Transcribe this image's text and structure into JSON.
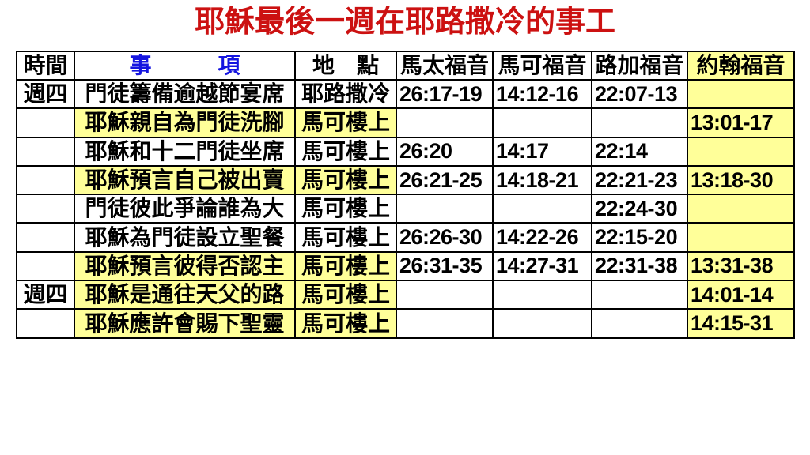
{
  "colors": {
    "background": "#FFFFFF",
    "title_red": "#CC1111",
    "header_blue": "#1515E0",
    "highlight_yellow": "#FFFF99",
    "border_black": "#000000",
    "text_black": "#000000"
  },
  "title": {
    "text": "耶穌最後一週在耶路撒冷的事工"
  },
  "table": {
    "header": {
      "time": "時間",
      "event": "事　　　項",
      "place": "地　點",
      "matthew": "馬太福音",
      "mark": "馬可福音",
      "luke": "路加福音",
      "john": "約翰福音"
    },
    "rows": [
      {
        "time": "週四",
        "event": "門徒籌備逾越節宴席",
        "place": "耶路撒冷",
        "matthew": "26:17-19",
        "mark": "14:12-16",
        "luke": "22:07-13",
        "john": "",
        "highlighted": false
      },
      {
        "time": "",
        "event": "耶穌親自為門徒洗腳",
        "place": "馬可樓上",
        "matthew": "",
        "mark": "",
        "luke": "",
        "john": "13:01-17",
        "highlighted": true
      },
      {
        "time": "",
        "event": "耶穌和十二門徒坐席",
        "place": "馬可樓上",
        "matthew": "26:20",
        "mark": "14:17",
        "luke": "22:14",
        "john": "",
        "highlighted": false
      },
      {
        "time": "",
        "event": "耶穌預言自己被出賣",
        "place": "馬可樓上",
        "matthew": "26:21-25",
        "mark": "14:18-21",
        "luke": "22:21-23",
        "john": "13:18-30",
        "highlighted": true
      },
      {
        "time": "",
        "event": "門徒彼此爭論誰為大",
        "place": "馬可樓上",
        "matthew": "",
        "mark": "",
        "luke": "22:24-30",
        "john": "",
        "highlighted": false
      },
      {
        "time": "",
        "event": "耶穌為門徒設立聖餐",
        "place": "馬可樓上",
        "matthew": "26:26-30",
        "mark": "14:22-26",
        "luke": "22:15-20",
        "john": "",
        "highlighted": false
      },
      {
        "time": "",
        "event": "耶穌預言彼得否認主",
        "place": "馬可樓上",
        "matthew": "26:31-35",
        "mark": "14:27-31",
        "luke": "22:31-38",
        "john": "13:31-38",
        "highlighted": true
      },
      {
        "time": "週四",
        "event": "耶穌是通往天父的路",
        "place": "馬可樓上",
        "matthew": "",
        "mark": "",
        "luke": "",
        "john": "14:01-14",
        "highlighted": true
      },
      {
        "time": "",
        "event": "耶穌應許會賜下聖靈",
        "place": "馬可樓上",
        "matthew": "",
        "mark": "",
        "luke": "",
        "john": "14:15-31",
        "highlighted": true
      }
    ]
  }
}
